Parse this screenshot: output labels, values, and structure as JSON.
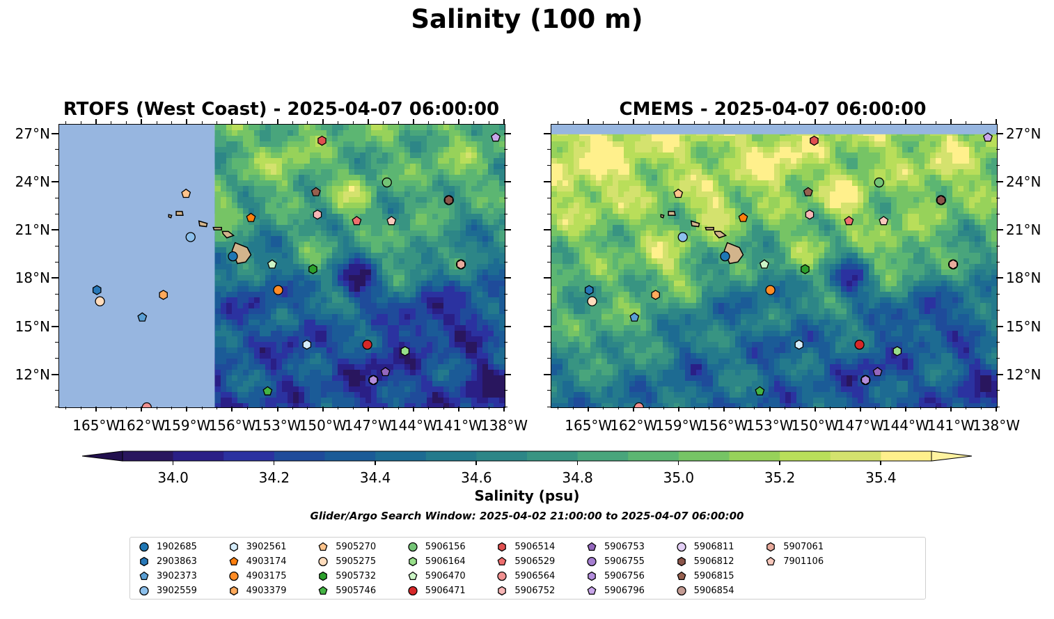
{
  "figure": {
    "title": "Salinity (100 m)",
    "colorbar_label": "Salinity (psu)",
    "search_window": "Glider/Argo Search Window: 2025-04-02 21:00:00 to 2025-04-07 06:00:00"
  },
  "panels": [
    {
      "title": "RTOFS (West Coast) - 2025-04-07 06:00:00",
      "land_mask_east_of": -157.2
    },
    {
      "title": "CMEMS - 2025-04-07 06:00:00",
      "land_mask_north_of": 27.0
    }
  ],
  "map": {
    "lon_range": [
      -167.5,
      -138.0
    ],
    "lat_range": [
      10.0,
      27.6
    ],
    "lon_ticks": [
      {
        "value": -165,
        "label": "165°W"
      },
      {
        "value": -162,
        "label": "162°W"
      },
      {
        "value": -159,
        "label": "159°W"
      },
      {
        "value": -156,
        "label": "156°W"
      },
      {
        "value": -153,
        "label": "153°W"
      },
      {
        "value": -150,
        "label": "150°W"
      },
      {
        "value": -147,
        "label": "147°W"
      },
      {
        "value": -144,
        "label": "144°W"
      },
      {
        "value": -141,
        "label": "141°W"
      },
      {
        "value": -138,
        "label": "138°W"
      }
    ],
    "lat_ticks": [
      {
        "value": 27,
        "label": "27°N"
      },
      {
        "value": 24,
        "label": "24°N"
      },
      {
        "value": 21,
        "label": "21°N"
      },
      {
        "value": 18,
        "label": "18°N"
      },
      {
        "value": 15,
        "label": "15°N"
      },
      {
        "value": 12,
        "label": "12°N"
      }
    ],
    "colors": {
      "land": "#d2b48c",
      "mask": "#97b6e0"
    }
  },
  "colorbar": {
    "min": 33.9,
    "max": 35.5,
    "step": 0.1,
    "ticks": [
      {
        "value": 34.0,
        "label": "34.0"
      },
      {
        "value": 34.2,
        "label": "34.2"
      },
      {
        "value": 34.4,
        "label": "34.4"
      },
      {
        "value": 34.6,
        "label": "34.6"
      },
      {
        "value": 34.8,
        "label": "34.8"
      },
      {
        "value": 35.0,
        "label": "35.0"
      },
      {
        "value": 35.2,
        "label": "35.2"
      },
      {
        "value": 35.4,
        "label": "35.4"
      }
    ],
    "colors": [
      "#29165e",
      "#2a1f86",
      "#2b32a0",
      "#1f4b9a",
      "#1b5b97",
      "#1d6b92",
      "#247a8c",
      "#2d8687",
      "#389482",
      "#49a57c",
      "#5cb672",
      "#76c465",
      "#97d25a",
      "#b9de5a",
      "#d4e26e",
      "#fff08c"
    ],
    "extend_min_color": "#22104e",
    "extend_max_color": "#fff3a0"
  },
  "floats": [
    {
      "id": "1902685",
      "marker": "circle",
      "color": "#1f77b4",
      "lon": -156.0,
      "lat": 19.4
    },
    {
      "id": "2903863",
      "marker": "hexagon",
      "color": "#2878b8",
      "lon": -165.0,
      "lat": 17.3
    },
    {
      "id": "3902373",
      "marker": "pentagon",
      "color": "#5a9fd4",
      "lon": -162.0,
      "lat": 15.6
    },
    {
      "id": "3902559",
      "marker": "circle",
      "color": "#8cc0ec",
      "lon": -158.8,
      "lat": 20.6
    },
    {
      "id": "3902561",
      "marker": "hexagon",
      "color": "#d4ecfb",
      "lon": -151.1,
      "lat": 13.9
    },
    {
      "id": "4903174",
      "marker": "pentagon",
      "color": "#ff7f0e",
      "lon": -154.8,
      "lat": 21.8
    },
    {
      "id": "4903175",
      "marker": "circle",
      "color": "#ff8c26",
      "lon": -153.0,
      "lat": 17.3
    },
    {
      "id": "4903379",
      "marker": "hexagon",
      "color": "#ffaa5c",
      "lon": -160.6,
      "lat": 17.0
    },
    {
      "id": "5905270",
      "marker": "pentagon",
      "color": "#ffc48c",
      "lon": -159.1,
      "lat": 23.3
    },
    {
      "id": "5905275",
      "marker": "circle",
      "color": "#ffdcbc",
      "lon": -164.8,
      "lat": 16.6
    },
    {
      "id": "5905732",
      "marker": "hexagon",
      "color": "#2ca02c",
      "lon": -150.7,
      "lat": 18.6
    },
    {
      "id": "5905746",
      "marker": "pentagon",
      "color": "#44b444",
      "lon": -153.7,
      "lat": 11.0
    },
    {
      "id": "5906156",
      "marker": "circle",
      "color": "#74c476",
      "lon": -145.8,
      "lat": 24.0
    },
    {
      "id": "5906164",
      "marker": "hexagon",
      "color": "#98df8a",
      "lon": -144.6,
      "lat": 13.5
    },
    {
      "id": "5906470",
      "marker": "pentagon",
      "color": "#ccf5c6",
      "lon": -153.4,
      "lat": 18.9
    },
    {
      "id": "5906471",
      "marker": "circle",
      "color": "#d62728",
      "lon": -147.1,
      "lat": 13.9
    },
    {
      "id": "5906514",
      "marker": "hexagon",
      "color": "#e05050",
      "lon": -150.1,
      "lat": 26.6
    },
    {
      "id": "5906529",
      "marker": "pentagon",
      "color": "#ee6e6e",
      "lon": -147.8,
      "lat": 21.6
    },
    {
      "id": "5906564",
      "marker": "circle",
      "color": "#f09090",
      "lon": -161.7,
      "lat": 10.0
    },
    {
      "id": "5906752",
      "marker": "hexagon",
      "color": "#f7b6b6",
      "lon": -150.4,
      "lat": 22.0
    },
    {
      "id": "5906753",
      "marker": "pentagon",
      "color": "#9467bd",
      "lon": -145.9,
      "lat": 12.2
    },
    {
      "id": "5906755",
      "marker": "circle",
      "color": "#a57ed0",
      "lon": -146.7,
      "lat": 11.7
    },
    {
      "id": "5906756",
      "marker": "hexagon",
      "color": "#b38ddc",
      "lon": -146.7,
      "lat": 11.7
    },
    {
      "id": "5906796",
      "marker": "pentagon",
      "color": "#c9a6ea",
      "lon": -138.6,
      "lat": 26.8
    },
    {
      "id": "5906811",
      "marker": "circle",
      "color": "#e3cff5",
      "lon": -141.7,
      "lat": 22.9
    },
    {
      "id": "5906812",
      "marker": "hexagon",
      "color": "#8c564b",
      "lon": -141.7,
      "lat": 22.9
    },
    {
      "id": "5906815",
      "marker": "pentagon",
      "color": "#96604f",
      "lon": -150.5,
      "lat": 23.4
    },
    {
      "id": "5906854",
      "marker": "circle",
      "color": "#c49c94",
      "lon": -140.9,
      "lat": 18.9
    },
    {
      "id": "5907061",
      "marker": "hexagon",
      "color": "#e8aa9c",
      "lon": -140.9,
      "lat": 18.9
    },
    {
      "id": "7901106",
      "marker": "pentagon",
      "color": "#f8c8bc",
      "lon": -145.5,
      "lat": 21.6
    }
  ]
}
